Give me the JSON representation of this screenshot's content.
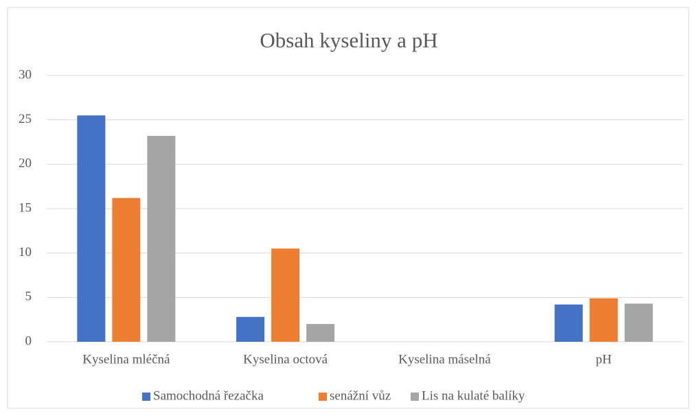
{
  "chart_data": {
    "type": "bar",
    "title": "Obsah kyseliny a pH",
    "categories": [
      "Kyselina mléčná",
      "Kyselina octová",
      "Kyselina máselná",
      "pH"
    ],
    "series": [
      {
        "name": "Samochodná řezačka",
        "color": "#4472c4",
        "values": [
          25.5,
          2.8,
          0,
          4.2
        ]
      },
      {
        "name": "senážní vůz",
        "color": "#ed7d31",
        "values": [
          16.2,
          10.5,
          0,
          4.9
        ]
      },
      {
        "name": "Lis na kulaté balíky",
        "color": "#a5a5a5",
        "values": [
          23.2,
          2.0,
          0,
          4.3
        ]
      }
    ],
    "ylim": [
      0,
      30
    ],
    "yticks": [
      0,
      5,
      10,
      15,
      20,
      25,
      30
    ],
    "grid": true,
    "legend": "bottom"
  }
}
